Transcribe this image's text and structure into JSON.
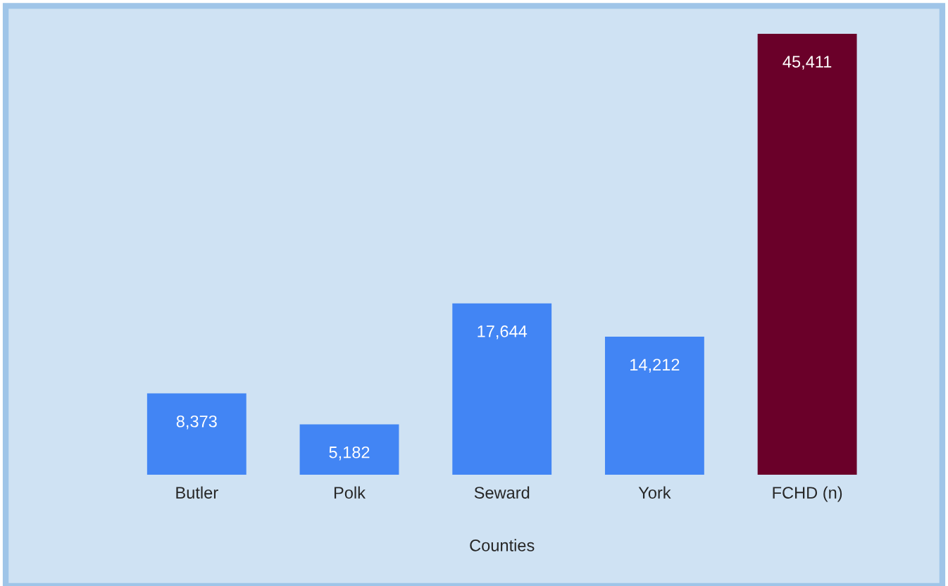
{
  "chart_data": {
    "type": "bar",
    "xlabel": "Counties",
    "categories": [
      "Butler",
      "Polk",
      "Seward",
      "York",
      "FCHD (n)"
    ],
    "values": [
      8373,
      5182,
      17644,
      14212,
      45411
    ],
    "colors": [
      "#4285f4",
      "#4285f4",
      "#4285f4",
      "#4285f4",
      "#6a0029"
    ],
    "value_labels": [
      "8,373",
      "5,182",
      "17,644",
      "14,212",
      "45,411"
    ]
  }
}
